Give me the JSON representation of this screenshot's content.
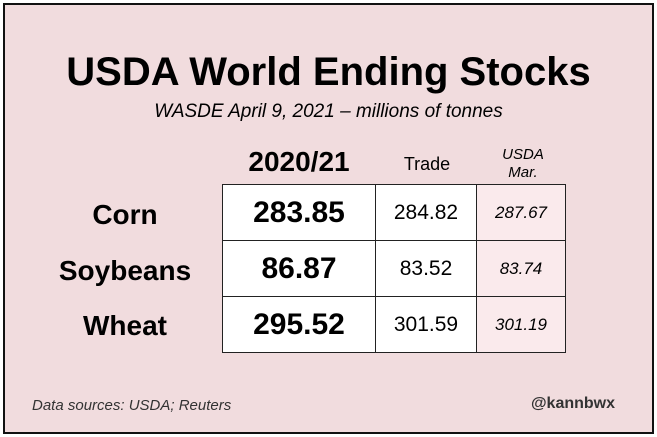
{
  "chart_data": {
    "type": "table",
    "title": "USDA World Ending Stocks",
    "subtitle": "WASDE April 9, 2021 – millions of tonnes",
    "columns": [
      {
        "key": "usda_2020_21",
        "label": "2020/21"
      },
      {
        "key": "trade",
        "label": "Trade"
      },
      {
        "key": "usda_mar",
        "label_lines": [
          "USDA",
          "Mar."
        ]
      }
    ],
    "rows": [
      {
        "label": "Corn",
        "values": [
          "283.85",
          "284.82",
          "287.67"
        ]
      },
      {
        "label": "Soybeans",
        "values": [
          "86.87",
          "83.52",
          "83.74"
        ]
      },
      {
        "label": "Wheat",
        "values": [
          "295.52",
          "301.59",
          "301.19"
        ]
      }
    ],
    "source": "Data sources: USDA; Reuters",
    "credit": "@kannbwx"
  },
  "colors": {
    "background": "#f1dcde",
    "border": "#111111",
    "cell_white": "#ffffff",
    "cell_pink": "#faeaec",
    "text": "#000000",
    "footer_text": "#333333"
  }
}
